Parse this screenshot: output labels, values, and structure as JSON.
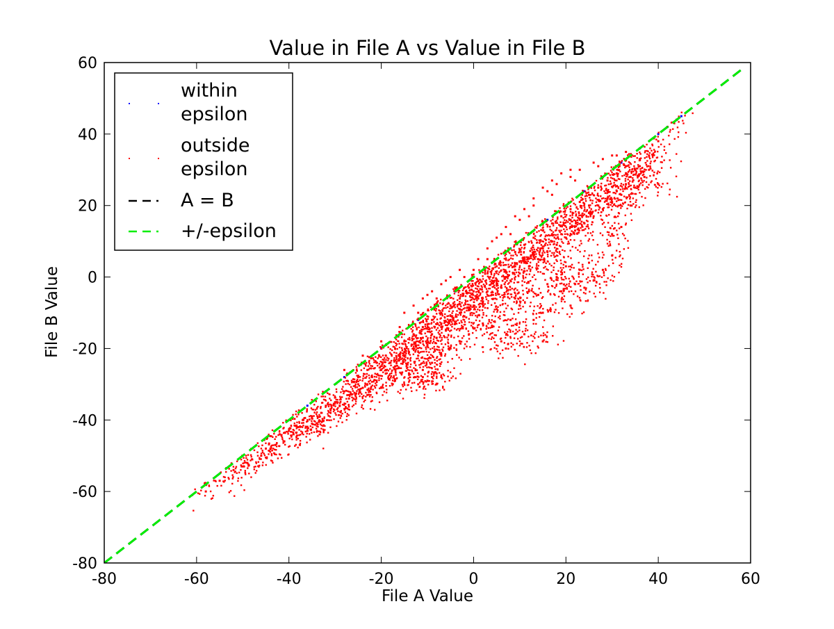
{
  "chart_data": {
    "type": "scatter",
    "title": "Value in File A vs Value in File B",
    "xlabel": "File A Value",
    "ylabel": "File B Value",
    "xlim": [
      -80,
      60
    ],
    "ylim": [
      -80,
      60
    ],
    "xticks": [
      "-80",
      "-60",
      "-40",
      "-20",
      "0",
      "20",
      "40",
      "60"
    ],
    "yticks": [
      "60",
      "40",
      "20",
      "0",
      "-20",
      "-40",
      "-60",
      "-80"
    ],
    "grid": false,
    "legend_position": "top-left",
    "series": [
      {
        "name": "within epsilon",
        "kind": "scatter",
        "color": "#0000ff",
        "points": [
          [
            -36,
            -36
          ],
          [
            -32,
            -32
          ],
          [
            -28,
            -28
          ],
          [
            -24,
            -24
          ],
          [
            -20,
            -20
          ],
          [
            -16,
            -16
          ],
          [
            -12,
            -12
          ],
          [
            -8,
            -8
          ],
          [
            -4,
            -4
          ],
          [
            0,
            0
          ],
          [
            4,
            4
          ],
          [
            8,
            8
          ],
          [
            12,
            12
          ],
          [
            16,
            16
          ],
          [
            20,
            20
          ],
          [
            24,
            24
          ],
          [
            28,
            28
          ],
          [
            32,
            32
          ],
          [
            36,
            36
          ],
          [
            40,
            40
          ],
          [
            42,
            42
          ],
          [
            44,
            44
          ],
          [
            45,
            45
          ]
        ]
      },
      {
        "name": "outside epsilon",
        "kind": "scatter",
        "color": "#ff0000",
        "distribution": "dense cloud below the A = B line",
        "points": [
          [
            -58,
            -60
          ],
          [
            -55,
            -57
          ],
          [
            -52,
            -54
          ],
          [
            -50,
            -53
          ],
          [
            -48,
            -51
          ],
          [
            -45,
            -48
          ],
          [
            -43,
            -47
          ],
          [
            -42,
            -44
          ],
          [
            -40,
            -43
          ],
          [
            -38,
            -42
          ],
          [
            -37,
            -40
          ],
          [
            -35,
            -39
          ],
          [
            -33,
            -38
          ],
          [
            -32,
            -36
          ],
          [
            -30,
            -35
          ],
          [
            -28,
            -32
          ],
          [
            -27,
            -33
          ],
          [
            -25,
            -30
          ],
          [
            -24,
            -31
          ],
          [
            -22,
            -28
          ],
          [
            -21,
            -29
          ],
          [
            -20,
            -26
          ],
          [
            -19,
            -27
          ],
          [
            -18,
            -24
          ],
          [
            -17,
            -25
          ],
          [
            -16,
            -22
          ],
          [
            -15,
            -23
          ],
          [
            -14,
            -21
          ],
          [
            -13,
            -20
          ],
          [
            -12,
            -22
          ],
          [
            -11,
            -18
          ],
          [
            -10,
            -19
          ],
          [
            -9,
            -16
          ],
          [
            -9,
            -28
          ],
          [
            -8,
            -17
          ],
          [
            -7,
            -14
          ],
          [
            -6,
            -15
          ],
          [
            -5,
            -12
          ],
          [
            -4,
            -13
          ],
          [
            -3,
            -10
          ],
          [
            -2,
            -11
          ],
          [
            -1,
            -9
          ],
          [
            0,
            -8
          ],
          [
            0,
            -4
          ],
          [
            1,
            -6
          ],
          [
            2,
            -7
          ],
          [
            3,
            -4
          ],
          [
            4,
            -5
          ],
          [
            4,
            -14
          ],
          [
            5,
            -2
          ],
          [
            6,
            -3
          ],
          [
            7,
            0
          ],
          [
            7,
            -20
          ],
          [
            8,
            -1
          ],
          [
            9,
            2
          ],
          [
            10,
            1
          ],
          [
            11,
            4
          ],
          [
            12,
            3
          ],
          [
            13,
            6
          ],
          [
            14,
            5
          ],
          [
            15,
            8
          ],
          [
            15,
            -10
          ],
          [
            16,
            7
          ],
          [
            17,
            10
          ],
          [
            18,
            9
          ],
          [
            19,
            12
          ],
          [
            20,
            11
          ],
          [
            21,
            14
          ],
          [
            22,
            13
          ],
          [
            23,
            16
          ],
          [
            24,
            15
          ],
          [
            25,
            18
          ],
          [
            26,
            17
          ],
          [
            27,
            20
          ],
          [
            28,
            19
          ],
          [
            29,
            22
          ],
          [
            30,
            21
          ],
          [
            31,
            24
          ],
          [
            32,
            23
          ],
          [
            33,
            26
          ],
          [
            34,
            28
          ],
          [
            35,
            30
          ],
          [
            36,
            31
          ],
          [
            38,
            34
          ],
          [
            40,
            38
          ],
          [
            42,
            42
          ],
          [
            44,
            44
          ],
          [
            4,
            10
          ],
          [
            6,
            12
          ],
          [
            10,
            16
          ],
          [
            13,
            20
          ],
          [
            16,
            24
          ],
          [
            18,
            26
          ],
          [
            21,
            28
          ],
          [
            23,
            30
          ],
          [
            26,
            32
          ],
          [
            28,
            33
          ],
          [
            30,
            34
          ],
          [
            33,
            35
          ],
          [
            36,
            33
          ],
          [
            38,
            30
          ],
          [
            40,
            26
          ],
          [
            -2,
            0
          ],
          [
            -4,
            -3
          ],
          [
            -8,
            -6
          ],
          [
            -12,
            -10
          ],
          [
            -16,
            -14
          ],
          [
            -20,
            -18
          ],
          [
            -24,
            -22
          ],
          [
            -28,
            -26
          ],
          [
            -10,
            -5
          ],
          [
            -6,
            -1
          ],
          [
            0,
            2
          ],
          [
            3,
            5
          ],
          [
            8,
            12
          ],
          [
            12,
            17
          ],
          [
            17,
            23
          ],
          [
            22,
            27
          ],
          [
            27,
            31
          ],
          [
            31,
            34
          ],
          [
            14,
            -5
          ],
          [
            16,
            -2
          ],
          [
            18,
            0
          ],
          [
            19,
            -4
          ],
          [
            20,
            3
          ],
          [
            21,
            -8
          ],
          [
            22,
            -2
          ],
          [
            23,
            2
          ],
          [
            24,
            -3
          ],
          [
            25,
            4
          ],
          [
            26,
            -1
          ],
          [
            28,
            2
          ],
          [
            30,
            6
          ],
          [
            30,
            12
          ],
          [
            32,
            14
          ],
          [
            34,
            20
          ],
          [
            35,
            25
          ],
          [
            37,
            28
          ],
          [
            8,
            -12
          ],
          [
            10,
            -8
          ],
          [
            11,
            -16
          ],
          [
            12,
            -4
          ],
          [
            13,
            -12
          ],
          [
            15,
            -18
          ],
          [
            5,
            -9
          ],
          [
            6,
            -18
          ],
          [
            9,
            -6
          ],
          [
            2,
            -13
          ],
          [
            -1,
            -16
          ],
          [
            -3,
            -18
          ],
          [
            -5,
            -20
          ],
          [
            -7,
            -22
          ],
          [
            -9,
            -24
          ],
          [
            -11,
            -26
          ],
          [
            -14,
            -27
          ],
          [
            -17,
            -29
          ],
          [
            -20,
            -31
          ],
          [
            -23,
            -33
          ],
          [
            -26,
            -34
          ],
          [
            -29,
            -36
          ],
          [
            -31,
            -38
          ],
          [
            -34,
            -41
          ],
          [
            -36,
            -43
          ],
          [
            -39,
            -44
          ],
          [
            -41,
            -46
          ],
          [
            -44,
            -48
          ],
          [
            -46,
            -50
          ],
          [
            -49,
            -52
          ],
          [
            -8,
            -27
          ],
          [
            -7,
            -28
          ],
          [
            -10,
            -29
          ],
          [
            -11,
            -28
          ],
          [
            -12,
            -30
          ],
          [
            -15,
            -10
          ],
          [
            -13,
            -8
          ],
          [
            -11,
            -6
          ],
          [
            -9,
            -4
          ],
          [
            -7,
            -2
          ],
          [
            -5,
            0
          ],
          [
            -3,
            2
          ],
          [
            1,
            5
          ],
          [
            3,
            8
          ],
          [
            5,
            11
          ],
          [
            7,
            14
          ],
          [
            9,
            17
          ],
          [
            11,
            19
          ],
          [
            13,
            22
          ],
          [
            15,
            25
          ],
          [
            17,
            27
          ],
          [
            19,
            29
          ],
          [
            21,
            30
          ],
          [
            -25,
            -28
          ],
          [
            -23,
            -26
          ],
          [
            -21,
            -24
          ],
          [
            -19,
            -22
          ],
          [
            -17,
            -20
          ],
          [
            -15,
            -18
          ],
          [
            -13,
            -16
          ],
          [
            -11,
            -14
          ],
          [
            -9,
            -12
          ],
          [
            -7,
            -10
          ],
          [
            -5,
            -8
          ],
          [
            -3,
            -6
          ],
          [
            -1,
            -3
          ],
          [
            1,
            -1
          ],
          [
            3,
            1
          ],
          [
            5,
            3
          ],
          [
            7,
            5
          ],
          [
            9,
            7
          ],
          [
            11,
            9
          ],
          [
            13,
            11
          ],
          [
            15,
            13
          ],
          [
            17,
            15
          ],
          [
            19,
            17
          ],
          [
            21,
            19
          ],
          [
            23,
            21
          ],
          [
            25,
            23
          ],
          [
            27,
            25
          ],
          [
            29,
            27
          ],
          [
            31,
            29
          ],
          [
            33,
            31
          ],
          [
            -35,
            -41
          ],
          [
            -31,
            -37
          ],
          [
            -27,
            -34
          ],
          [
            -23,
            -30
          ],
          [
            -19,
            -26
          ],
          [
            -15,
            -21
          ],
          [
            -11,
            -17
          ],
          [
            -7,
            -13
          ],
          [
            -3,
            -9
          ],
          [
            1,
            -4
          ],
          [
            5,
            -1
          ],
          [
            9,
            3
          ],
          [
            13,
            7
          ],
          [
            17,
            12
          ],
          [
            21,
            16
          ],
          [
            25,
            20
          ],
          [
            29,
            24
          ],
          [
            33,
            29
          ]
        ]
      },
      {
        "name": "A = B",
        "kind": "line",
        "color": "#000000",
        "dash": "dashed",
        "x": [
          -80,
          58
        ],
        "y": [
          -80,
          58
        ]
      },
      {
        "name": "+/-epsilon",
        "kind": "line",
        "color": "#00ee00",
        "dash": "dashed",
        "x": [
          -80,
          58
        ],
        "y": [
          -80,
          58
        ]
      }
    ],
    "legend": [
      {
        "lines": [
          "within",
          "epsilon"
        ],
        "color": "#0000ff",
        "marker": "point"
      },
      {
        "lines": [
          "outside",
          "epsilon"
        ],
        "color": "#ff0000",
        "marker": "point"
      },
      {
        "lines": [
          "A = B"
        ],
        "color": "#000000",
        "marker": "dash"
      },
      {
        "lines": [
          "+/-epsilon"
        ],
        "color": "#00ee00",
        "marker": "dash"
      }
    ]
  }
}
